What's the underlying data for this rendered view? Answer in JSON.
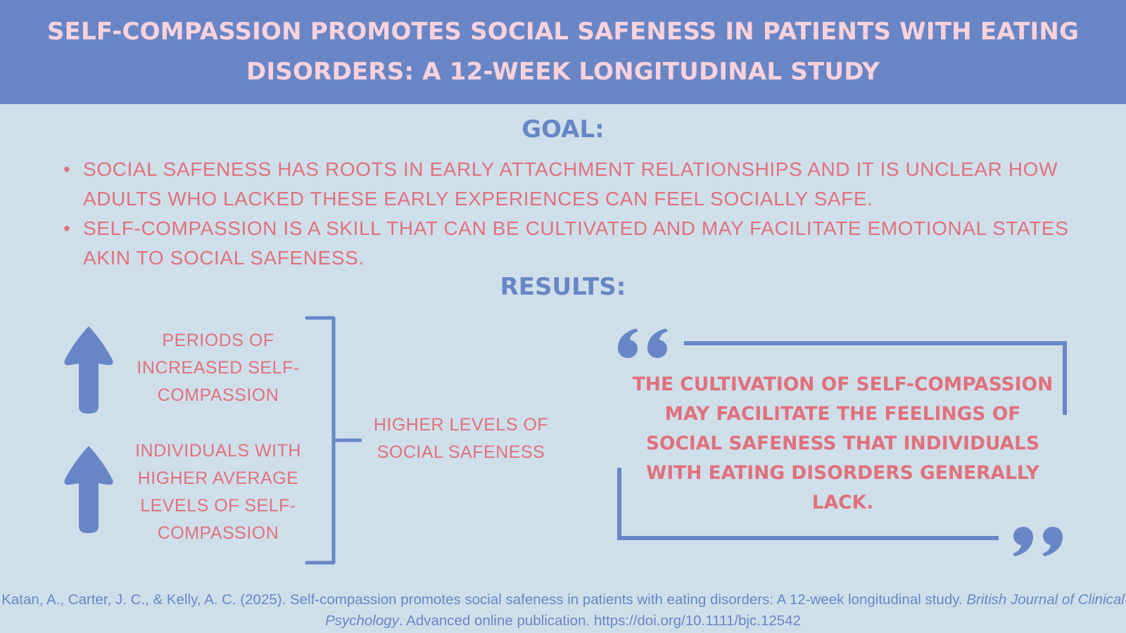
{
  "header": {
    "title": "SELF-COMPASSION PROMOTES SOCIAL SAFENESS IN PATIENTS WITH EATING DISORDERS: A 12-WEEK LONGITUDINAL STUDY"
  },
  "goal": {
    "title": "GOAL:",
    "items": [
      "SOCIAL SAFENESS HAS ROOTS IN EARLY ATTACHMENT RELATIONSHIPS AND IT IS UNCLEAR HOW ADULTS WHO LACKED THESE EARLY EXPERIENCES CAN FEEL SOCIALLY SAFE.",
      "SELF-COMPASSION IS A SKILL THAT CAN BE CULTIVATED AND MAY FACILITATE EMOTIONAL STATES AKIN TO SOCIAL SAFENESS."
    ]
  },
  "results": {
    "title": "RESULTS:",
    "predictors": [
      "PERIODS OF INCREASED SELF-COMPASSION",
      "INDIVIDUALS WITH HIGHER AVERAGE LEVELS OF SELF-COMPASSION"
    ],
    "outcome": "HIGHER LEVELS OF SOCIAL SAFENESS",
    "quote": "THE CULTIVATION OF SELF-COMPASSION MAY FACILITATE THE FEELINGS OF SOCIAL SAFENESS THAT INDIVIDUALS WITH EATING DISORDERS GENERALLY LACK."
  },
  "citation": {
    "authors": "Katan, A., Carter, J. C., & Kelly, A. C. (2025). Self-compassion promotes social safeness in patients with eating disorders: A 12-week longitudinal study. ",
    "journal": "British Journal of Clinical Psychology",
    "rest": ". Advanced online publication. https://doi.org/10.1111/bjc.12542"
  },
  "icons": {
    "arrows": "arrow-up-icon",
    "quote_marks": [
      "open-quote-icon",
      "close-quote-icon"
    ]
  },
  "colors": {
    "header_bg": "#6886c6",
    "page_bg": "#cfdfea",
    "title_pink": "#fbd2dc",
    "text_coral": "#e0717d",
    "accent_blue": "#6886c6"
  }
}
